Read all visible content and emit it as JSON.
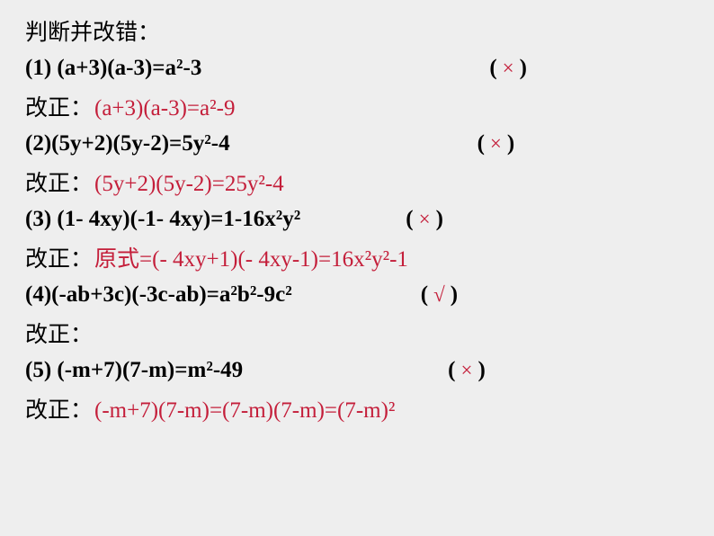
{
  "colors": {
    "background": "#eeeeee",
    "text_black": "#000000",
    "text_red": "#c41e3a"
  },
  "title": "判断并改错：",
  "items": [
    {
      "equation": "(1) (a+3)(a-3)=a²-3",
      "mark": "×",
      "paren_gap": 320,
      "correction_label": "改正：",
      "correction": "(a+3)(a-3)=a²-9"
    },
    {
      "equation": "(2)(5y+2)(5y-2)=5y²-4",
      "mark": "×",
      "paren_gap": 275,
      "correction_label": "改正：",
      "correction": "(5y+2)(5y-2)=25y²-4"
    },
    {
      "equation": "(3) (1- 4xy)(-1- 4xy)=1-16x²y²",
      "mark": "×",
      "paren_gap": 117,
      "correction_label": "改正：",
      "correction": "原式=(- 4xy+1)(- 4xy-1)=16x²y²-1"
    },
    {
      "equation": "(4)(-ab+3c)(-3c-ab)=a²b²-9c²",
      "mark": "√",
      "paren_gap": 143,
      "correction_label": "改正：",
      "correction": ""
    },
    {
      "equation": "(5) (-m+7)(7-m)=m²-49",
      "mark": "×",
      "paren_gap": 228,
      "correction_label": "改正：",
      "correction": "(-m+7)(7-m)=(7-m)(7-m)=(7-m)²"
    }
  ],
  "paren_open": "(",
  "paren_close": ")"
}
